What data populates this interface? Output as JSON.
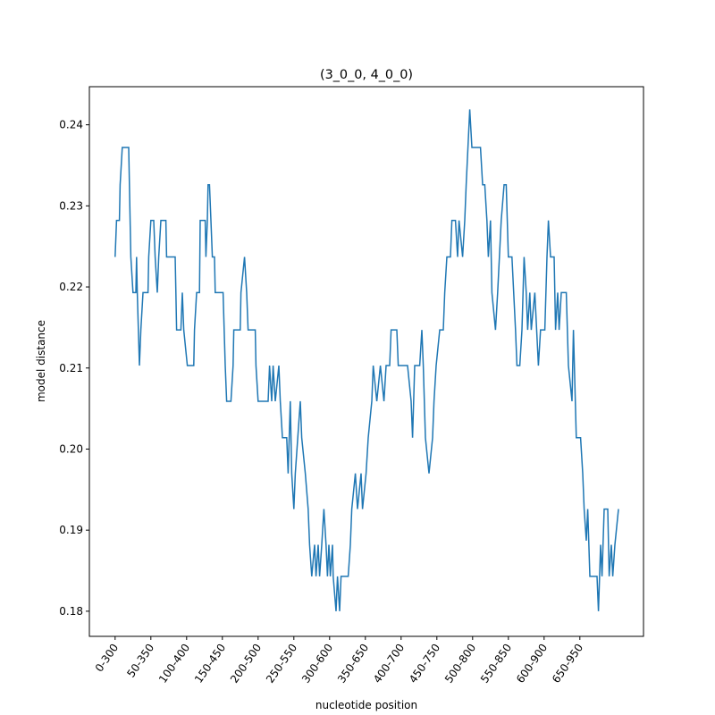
{
  "chart_data": {
    "type": "line",
    "title": "(3_0_0, 4_0_0)",
    "x_label": "nucleotide position",
    "y_label": "model distance",
    "x": [
      0,
      2,
      6,
      7,
      10,
      19,
      20,
      22,
      25,
      29,
      30,
      31,
      34,
      36,
      39,
      46,
      47,
      50,
      54,
      56,
      59,
      61,
      64,
      71,
      72,
      84,
      85,
      86,
      92,
      94,
      96,
      101,
      110,
      111,
      114,
      118,
      119,
      126,
      127,
      129,
      130,
      132,
      134,
      136,
      139,
      140,
      151,
      154,
      156,
      162,
      165,
      166,
      175,
      176,
      181,
      184,
      186,
      196,
      197,
      200,
      214,
      216,
      219,
      221,
      224,
      229,
      231,
      234,
      240,
      242,
      245,
      247,
      250,
      252,
      259,
      261,
      266,
      270,
      272,
      275,
      279,
      281,
      284,
      286,
      289,
      292,
      295,
      297,
      299,
      301,
      304,
      305,
      309,
      311,
      314,
      316,
      326,
      329,
      331,
      336,
      339,
      344,
      346,
      351,
      354,
      359,
      361,
      366,
      371,
      376,
      379,
      384,
      386,
      394,
      396,
      409,
      414,
      416,
      419,
      426,
      429,
      431,
      434,
      439,
      444,
      446,
      449,
      454,
      459,
      461,
      464,
      469,
      471,
      476,
      479,
      481,
      486,
      489,
      491,
      496,
      499,
      511,
      514,
      517,
      520,
      522,
      525,
      527,
      532,
      535,
      540,
      544,
      547,
      550,
      555,
      560,
      562,
      566,
      569,
      572,
      575,
      577,
      580,
      582,
      587,
      592,
      595,
      601,
      604,
      606,
      609,
      614,
      616,
      619,
      621,
      624,
      631,
      634,
      639,
      641,
      645,
      651,
      654,
      656,
      659,
      661,
      664,
      674,
      676,
      679,
      681,
      684,
      689,
      691,
      694,
      696,
      699,
      704
    ],
    "series": [
      {
        "name": "distance",
        "color": "#1f77b4",
        "values": [
          0.2237,
          0.2282,
          0.2282,
          0.2326,
          0.2372,
          0.2372,
          0.2326,
          0.2237,
          0.2193,
          0.2193,
          0.2237,
          0.2193,
          0.2103,
          0.2147,
          0.2193,
          0.2193,
          0.2237,
          0.2282,
          0.2282,
          0.2237,
          0.2193,
          0.2237,
          0.2282,
          0.2282,
          0.2237,
          0.2237,
          0.2193,
          0.2147,
          0.2147,
          0.2193,
          0.2147,
          0.2103,
          0.2103,
          0.2147,
          0.2193,
          0.2193,
          0.2282,
          0.2282,
          0.2237,
          0.2282,
          0.2326,
          0.2326,
          0.2282,
          0.2237,
          0.2237,
          0.2193,
          0.2193,
          0.2103,
          0.2059,
          0.2059,
          0.2103,
          0.2147,
          0.2147,
          0.2193,
          0.2237,
          0.2193,
          0.2147,
          0.2147,
          0.2103,
          0.2059,
          0.2059,
          0.2103,
          0.2059,
          0.2103,
          0.2059,
          0.2103,
          0.2059,
          0.2014,
          0.2014,
          0.197,
          0.2059,
          0.197,
          0.1926,
          0.197,
          0.2059,
          0.2014,
          0.197,
          0.1926,
          0.1882,
          0.1843,
          0.1882,
          0.1843,
          0.1882,
          0.1843,
          0.1882,
          0.1926,
          0.1882,
          0.1843,
          0.1882,
          0.1843,
          0.1882,
          0.1843,
          0.18,
          0.1843,
          0.18,
          0.1843,
          0.1843,
          0.1882,
          0.1926,
          0.197,
          0.1926,
          0.197,
          0.1926,
          0.197,
          0.2014,
          0.2059,
          0.2103,
          0.2059,
          0.2103,
          0.2059,
          0.2103,
          0.2103,
          0.2147,
          0.2147,
          0.2103,
          0.2103,
          0.2059,
          0.2014,
          0.2103,
          0.2103,
          0.2147,
          0.2103,
          0.2014,
          0.197,
          0.2014,
          0.2059,
          0.2103,
          0.2147,
          0.2147,
          0.2193,
          0.2237,
          0.2237,
          0.2282,
          0.2282,
          0.2237,
          0.2282,
          0.2237,
          0.2282,
          0.2326,
          0.2419,
          0.2372,
          0.2372,
          0.2326,
          0.2326,
          0.2282,
          0.2237,
          0.2282,
          0.2193,
          0.2147,
          0.2193,
          0.2282,
          0.2326,
          0.2326,
          0.2237,
          0.2237,
          0.2147,
          0.2103,
          0.2103,
          0.2147,
          0.2237,
          0.2193,
          0.2147,
          0.2193,
          0.2147,
          0.2193,
          0.2103,
          0.2147,
          0.2147,
          0.2237,
          0.2282,
          0.2237,
          0.2237,
          0.2147,
          0.2193,
          0.2147,
          0.2193,
          0.2193,
          0.2103,
          0.2059,
          0.2147,
          0.2014,
          0.2014,
          0.197,
          0.1926,
          0.1887,
          0.1926,
          0.1843,
          0.1843,
          0.18,
          0.1882,
          0.1843,
          0.1926,
          0.1926,
          0.1843,
          0.1882,
          0.1843,
          0.1882,
          0.1926
        ]
      }
    ],
    "xlim": [
      -36,
      739
    ],
    "ylim": [
      0.1769,
      0.2447
    ],
    "xticks": [
      {
        "value": 0,
        "label": "0-300"
      },
      {
        "value": 50,
        "label": "50-350"
      },
      {
        "value": 100,
        "label": "100-400"
      },
      {
        "value": 150,
        "label": "150-450"
      },
      {
        "value": 200,
        "label": "200-500"
      },
      {
        "value": 250,
        "label": "250-550"
      },
      {
        "value": 300,
        "label": "300-600"
      },
      {
        "value": 350,
        "label": "350-650"
      },
      {
        "value": 400,
        "label": "400-700"
      },
      {
        "value": 450,
        "label": "450-750"
      },
      {
        "value": 500,
        "label": "500-800"
      },
      {
        "value": 550,
        "label": "550-850"
      },
      {
        "value": 600,
        "label": "600-900"
      },
      {
        "value": 650,
        "label": "650-950"
      }
    ],
    "yticks": [
      0.18,
      0.19,
      {
        "value": 0.2,
        "label": "0.20"
      },
      0.21,
      0.22,
      0.23,
      0.24
    ]
  }
}
